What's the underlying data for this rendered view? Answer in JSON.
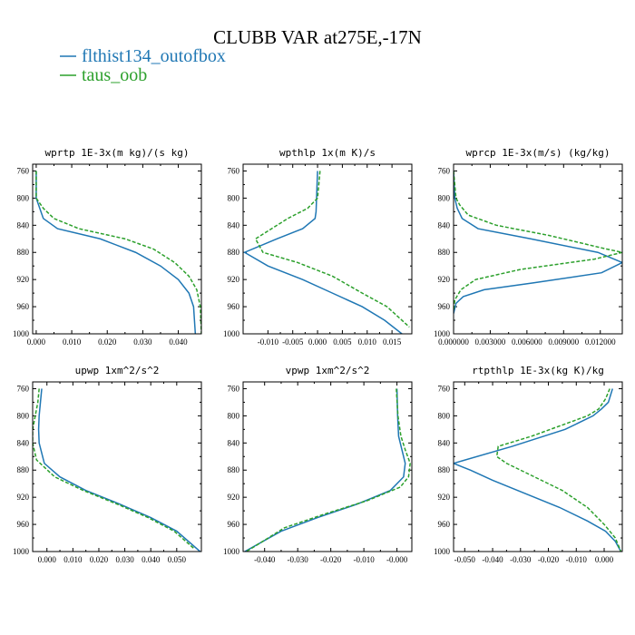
{
  "figure": {
    "title": "CLUBB VAR at275E,-17N",
    "colors": {
      "flthist": "#1f77b4",
      "taus": "#2ca02c"
    },
    "legend": [
      {
        "label": "flthist134_outofbox",
        "color": "#1f77b4",
        "dash": false
      },
      {
        "label": "taus_oob",
        "color": "#2ca02c",
        "dash": true
      }
    ]
  },
  "chart_data": [
    {
      "type": "line",
      "title": "wprtp  1E-3x(m kg)/(s kg)",
      "xlim": [
        -0.001,
        0.0465
      ],
      "ylim": [
        1000,
        750
      ],
      "xticks": [
        0.0,
        0.01,
        0.02,
        0.03,
        0.04
      ],
      "xtick_labels": [
        "0.000",
        "0.010",
        "0.020",
        "0.030",
        "0.040"
      ],
      "yticks": [
        760,
        800,
        840,
        880,
        920,
        960,
        1000
      ],
      "series": [
        {
          "name": "flthist134_outofbox",
          "x": [
            0.0,
            0.0,
            0.001,
            0.002,
            0.006,
            0.018,
            0.028,
            0.035,
            0.04,
            0.043,
            0.0443,
            0.0448
          ],
          "y": [
            760,
            800,
            815,
            830,
            845,
            860,
            880,
            900,
            920,
            940,
            960,
            1000
          ]
        },
        {
          "name": "taus_oob",
          "x": [
            0.0,
            0.0,
            0.002,
            0.005,
            0.012,
            0.025,
            0.033,
            0.039,
            0.043,
            0.0452,
            0.0462,
            0.0465
          ],
          "y": [
            760,
            800,
            815,
            830,
            845,
            860,
            875,
            895,
            915,
            935,
            960,
            1000
          ]
        }
      ]
    },
    {
      "type": "line",
      "title": "wpthlp  1x(m K)/s",
      "xlim": [
        -0.015,
        0.019
      ],
      "ylim": [
        1000,
        750
      ],
      "xticks": [
        -0.01,
        -0.005,
        0.0,
        0.005,
        0.01,
        0.015
      ],
      "xtick_labels": [
        "-0.010",
        "-0.005",
        "0.000",
        "0.005",
        "0.010",
        "0.015"
      ],
      "yticks": [
        760,
        800,
        840,
        880,
        920,
        960,
        1000
      ],
      "series": [
        {
          "name": "flthist134_outofbox",
          "x": [
            0.0,
            -0.0002,
            -0.0003,
            -0.0005,
            -0.003,
            -0.0082,
            -0.0147,
            -0.01,
            -0.003,
            0.003,
            0.009,
            0.0135,
            0.017
          ],
          "y": [
            760,
            800,
            820,
            830,
            845,
            860,
            880,
            900,
            920,
            940,
            960,
            980,
            1000
          ]
        },
        {
          "name": "taus_oob",
          "x": [
            0.0005,
            0.0,
            -0.002,
            -0.006,
            -0.0125,
            -0.011,
            -0.004,
            0.003,
            0.009,
            0.014,
            0.0185
          ],
          "y": [
            760,
            800,
            815,
            830,
            860,
            880,
            895,
            915,
            940,
            960,
            990
          ]
        }
      ]
    },
    {
      "type": "line",
      "title": "wprcp  1E-3x(m/s) (kg/kg)",
      "xlim": [
        0.0,
        0.0138
      ],
      "ylim": [
        1000,
        750
      ],
      "xticks": [
        0.0,
        0.003,
        0.006,
        0.009,
        0.012
      ],
      "xtick_labels": [
        "0.000000",
        "0.003000",
        "0.006000",
        "0.009000",
        "0.012000"
      ],
      "yticks": [
        760,
        800,
        840,
        880,
        920,
        960,
        1000
      ],
      "series": [
        {
          "name": "flthist134_outofbox",
          "x": [
            0.0,
            0.0001,
            0.0003,
            0.0007,
            0.002,
            0.0063,
            0.0118,
            0.0138,
            0.0121,
            0.0065,
            0.0025,
            0.0008,
            0.0002,
            0.0
          ],
          "y": [
            760,
            800,
            815,
            830,
            845,
            860,
            880,
            895,
            910,
            925,
            935,
            945,
            955,
            970
          ]
        },
        {
          "name": "taus_oob",
          "x": [
            0.0,
            0.0002,
            0.0005,
            0.0012,
            0.0035,
            0.0078,
            0.0125,
            0.0138,
            0.0115,
            0.0055,
            0.0018,
            0.0006,
            0.0001,
            0.0
          ],
          "y": [
            760,
            800,
            810,
            825,
            840,
            855,
            875,
            880,
            890,
            905,
            920,
            935,
            950,
            965
          ]
        }
      ]
    },
    {
      "type": "line",
      "title": "upwp  1xm^2/s^2",
      "xlim": [
        -0.0055,
        0.0595
      ],
      "ylim": [
        1000,
        750
      ],
      "xticks": [
        0.0,
        0.01,
        0.02,
        0.03,
        0.04,
        0.05
      ],
      "xtick_labels": [
        "0.000",
        "0.010",
        "0.020",
        "0.030",
        "0.040",
        "0.050"
      ],
      "yticks": [
        760,
        800,
        840,
        880,
        920,
        960,
        1000
      ],
      "series": [
        {
          "name": "flthist134_outofbox",
          "x": [
            -0.002,
            -0.0025,
            -0.003,
            -0.0032,
            -0.003,
            -0.001,
            0.005,
            0.015,
            0.028,
            0.04,
            0.05,
            0.059
          ],
          "y": [
            760,
            780,
            800,
            820,
            840,
            870,
            890,
            910,
            930,
            950,
            970,
            1000
          ]
        },
        {
          "name": "taus_oob",
          "x": [
            -0.003,
            -0.0035,
            -0.0045,
            -0.0055,
            -0.0055,
            -0.004,
            0.003,
            0.014,
            0.027,
            0.039,
            0.049,
            0.0565
          ],
          "y": [
            760,
            780,
            800,
            820,
            840,
            865,
            890,
            910,
            930,
            950,
            970,
            995
          ]
        }
      ]
    },
    {
      "type": "line",
      "title": "vpwp  1xm^2/s^2",
      "xlim": [
        -0.0465,
        0.0045
      ],
      "ylim": [
        1000,
        750
      ],
      "xticks": [
        -0.04,
        -0.03,
        -0.02,
        -0.01,
        0.0
      ],
      "xtick_labels": [
        "-0.040",
        "-0.030",
        "-0.020",
        "-0.010",
        "-0.000"
      ],
      "yticks": [
        760,
        800,
        840,
        880,
        920,
        960,
        1000
      ],
      "series": [
        {
          "name": "flthist134_outofbox",
          "x": [
            0.0,
            0.0002,
            0.0005,
            0.0015,
            0.0025,
            0.002,
            -0.002,
            -0.012,
            -0.024,
            -0.035,
            -0.046
          ],
          "y": [
            760,
            800,
            830,
            850,
            870,
            890,
            910,
            930,
            950,
            970,
            1000
          ]
        },
        {
          "name": "taus_oob",
          "x": [
            -0.0002,
            0.0003,
            0.0012,
            0.0025,
            0.004,
            0.0035,
            0.001,
            -0.009,
            -0.022,
            -0.034,
            -0.0455
          ],
          "y": [
            760,
            800,
            830,
            850,
            870,
            890,
            905,
            925,
            945,
            965,
            1000
          ]
        }
      ]
    },
    {
      "type": "line",
      "title": "rtpthlp  1E-3x(kg K)/kg",
      "xlim": [
        -0.054,
        0.0065
      ],
      "ylim": [
        1000,
        750
      ],
      "xticks": [
        -0.05,
        -0.04,
        -0.03,
        -0.02,
        -0.01,
        0.0
      ],
      "xtick_labels": [
        "-0.050",
        "-0.040",
        "-0.030",
        "-0.020",
        "-0.010",
        "0.000"
      ],
      "yticks": [
        760,
        800,
        840,
        880,
        920,
        960,
        1000
      ],
      "series": [
        {
          "name": "flthist134_outofbox",
          "x": [
            0.003,
            0.0015,
            -0.001,
            -0.004,
            -0.014,
            -0.033,
            -0.054,
            -0.048,
            -0.04,
            -0.028,
            -0.016,
            -0.006,
            0.0005,
            0.004,
            0.006
          ],
          "y": [
            760,
            780,
            790,
            800,
            820,
            845,
            870,
            880,
            895,
            915,
            935,
            955,
            970,
            985,
            1000
          ]
        },
        {
          "name": "taus_oob",
          "x": [
            0.002,
            0.0005,
            -0.002,
            -0.006,
            -0.016,
            -0.026,
            -0.038,
            -0.0385,
            -0.035,
            -0.025,
            -0.015,
            -0.006,
            0.0,
            0.004,
            0.006
          ],
          "y": [
            760,
            775,
            790,
            800,
            815,
            830,
            845,
            860,
            870,
            890,
            910,
            935,
            960,
            980,
            1000
          ]
        }
      ]
    }
  ]
}
